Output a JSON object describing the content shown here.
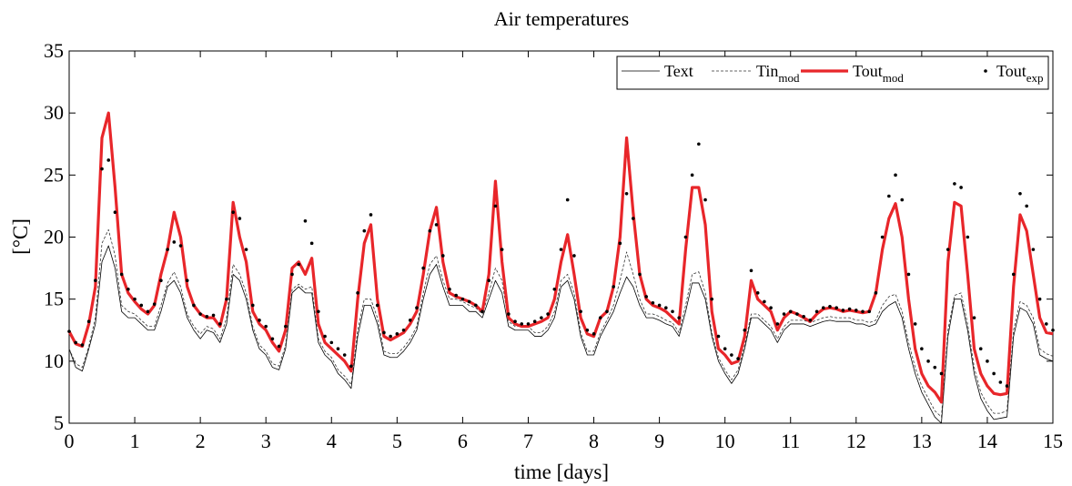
{
  "chart_data": {
    "type": "line",
    "title": "Air temperatures",
    "x_label": "time [days]",
    "y_label": "[°C]",
    "xlim": [
      0,
      15
    ],
    "xticks": [
      0,
      1,
      2,
      3,
      4,
      5,
      6,
      7,
      8,
      9,
      10,
      11,
      12,
      13,
      14,
      15
    ],
    "ylim": [
      5,
      35
    ],
    "yticks": [
      5,
      10,
      15,
      20,
      25,
      30,
      35
    ],
    "grid": false,
    "legend": "upper right",
    "x": [
      0,
      0.1,
      0.2,
      0.3,
      0.4,
      0.5,
      0.6,
      0.7,
      0.8,
      0.9,
      1,
      1.1,
      1.2,
      1.3,
      1.4,
      1.5,
      1.6,
      1.7,
      1.8,
      1.9,
      2,
      2.1,
      2.2,
      2.3,
      2.4,
      2.5,
      2.6,
      2.7,
      2.8,
      2.9,
      3,
      3.1,
      3.2,
      3.3,
      3.4,
      3.5,
      3.6,
      3.7,
      3.8,
      3.9,
      4,
      4.1,
      4.2,
      4.3,
      4.4,
      4.5,
      4.6,
      4.7,
      4.8,
      4.9,
      5,
      5.1,
      5.2,
      5.3,
      5.4,
      5.5,
      5.6,
      5.7,
      5.8,
      5.9,
      6,
      6.1,
      6.2,
      6.3,
      6.4,
      6.5,
      6.6,
      6.7,
      6.8,
      6.9,
      7,
      7.1,
      7.2,
      7.3,
      7.4,
      7.5,
      7.6,
      7.7,
      7.8,
      7.9,
      8,
      8.1,
      8.2,
      8.3,
      8.4,
      8.5,
      8.6,
      8.7,
      8.8,
      8.9,
      9,
      9.1,
      9.2,
      9.3,
      9.4,
      9.5,
      9.6,
      9.7,
      9.8,
      9.9,
      10,
      10.1,
      10.2,
      10.3,
      10.4,
      10.5,
      10.6,
      10.7,
      10.8,
      10.9,
      11,
      11.1,
      11.2,
      11.3,
      11.4,
      11.5,
      11.6,
      11.7,
      11.8,
      11.9,
      12,
      12.1,
      12.2,
      12.3,
      12.4,
      12.5,
      12.6,
      12.7,
      12.8,
      12.9,
      13,
      13.1,
      13.2,
      13.3,
      13.4,
      13.5,
      13.6,
      13.7,
      13.8,
      13.9,
      14,
      14.1,
      14.2,
      14.3,
      14.4,
      14.5,
      14.6,
      14.7,
      14.8,
      14.9,
      15
    ],
    "series": [
      {
        "name": "Text",
        "color": "#000000",
        "style": "solid",
        "width": 0.8,
        "values": [
          11,
          9.5,
          9.2,
          11,
          13,
          18,
          19.3,
          17.5,
          14,
          13.5,
          13.5,
          13,
          12.5,
          12.5,
          14,
          16,
          16.5,
          15.5,
          13.5,
          12.5,
          11.8,
          12.5,
          12.3,
          11.5,
          13,
          17,
          16.5,
          15,
          12.5,
          11,
          10.5,
          9.5,
          9.3,
          11,
          15.5,
          16,
          15.5,
          15.5,
          11.5,
          10.5,
          10,
          9,
          8.5,
          7.8,
          12,
          14.5,
          14.5,
          13,
          10.5,
          10.3,
          10.3,
          10.8,
          11.5,
          12.5,
          15,
          17,
          17.8,
          16,
          14.5,
          14.5,
          14.5,
          14,
          14,
          13.5,
          15,
          16.5,
          15.5,
          12.8,
          12.5,
          12.5,
          12.5,
          12,
          12,
          12.5,
          13.5,
          16,
          16.5,
          15,
          12,
          10.5,
          10.5,
          12,
          13,
          14,
          15.5,
          16.8,
          16,
          14.5,
          13.5,
          13.5,
          13.3,
          13,
          12.8,
          12,
          14,
          16.3,
          16.3,
          15,
          12,
          10,
          9,
          8.2,
          9,
          11,
          13.5,
          13.5,
          13,
          12.5,
          11.5,
          12.5,
          13,
          13,
          13,
          12.8,
          13,
          13.2,
          13.3,
          13.2,
          13.2,
          13.2,
          13,
          13,
          12.8,
          13,
          14,
          14.5,
          14.8,
          13.5,
          11,
          9,
          7.5,
          6.5,
          5.5,
          5,
          12,
          15,
          15,
          12.5,
          9,
          7,
          6,
          5.3,
          5.4,
          5.5,
          12,
          14.3,
          14,
          13,
          10.5,
          10.2,
          10
        ]
      },
      {
        "name": "Tin",
        "subscript": "mod",
        "color": "#333333",
        "style": "dashed",
        "width": 0.8,
        "values": [
          11,
          9.8,
          9.5,
          11.2,
          13.5,
          19.5,
          20.6,
          18.5,
          14.5,
          14,
          13.8,
          13.3,
          12.8,
          12.8,
          14.5,
          16.3,
          17.2,
          16,
          13.8,
          12.8,
          12.2,
          12.8,
          12.6,
          11.8,
          13.5,
          17.8,
          17,
          15.5,
          12.8,
          11.3,
          10.8,
          9.8,
          9.6,
          11.3,
          15.8,
          16.2,
          15.8,
          16,
          11.8,
          10.8,
          10.3,
          9.3,
          8.8,
          8.1,
          12.5,
          15,
          15,
          13.5,
          10.8,
          10.6,
          10.6,
          11.1,
          11.8,
          12.8,
          15.5,
          17.8,
          18.5,
          16.5,
          15,
          15,
          14.8,
          14.5,
          14.3,
          13.8,
          15.5,
          17.5,
          16.5,
          13.2,
          12.8,
          12.8,
          12.8,
          12.3,
          12.3,
          12.8,
          14,
          16.5,
          17,
          15.5,
          12.3,
          10.8,
          10.8,
          12.3,
          13.3,
          14.5,
          16.5,
          18.8,
          17,
          15,
          13.8,
          13.8,
          13.6,
          13.3,
          13.1,
          12.3,
          14.5,
          17,
          17.2,
          15.5,
          12.3,
          10.3,
          9.3,
          8.5,
          9.3,
          11.3,
          13.8,
          13.8,
          13.3,
          12.8,
          11.8,
          12.8,
          13.3,
          13.3,
          13.3,
          13.1,
          13.3,
          13.5,
          13.6,
          13.5,
          13.5,
          13.5,
          13.3,
          13.3,
          13.1,
          13.3,
          14.5,
          15.2,
          15.4,
          14,
          11.5,
          9.5,
          8,
          7,
          6,
          5.5,
          12.5,
          15.3,
          15.5,
          13,
          9.5,
          7.5,
          6.5,
          5.8,
          5.8,
          6,
          12.5,
          14.8,
          14.5,
          13.5,
          11,
          10.6,
          10.4
        ]
      },
      {
        "name": "Tout",
        "subscript": "mod",
        "color": "#e8262a",
        "style": "solid",
        "width": 3.2,
        "values": [
          12.4,
          11.4,
          11.2,
          13,
          16,
          28,
          30,
          24,
          17,
          15.5,
          14.8,
          14.2,
          13.8,
          14.5,
          17,
          19,
          22,
          20,
          16,
          14.5,
          13.8,
          13.5,
          13.5,
          12.8,
          15,
          22.8,
          20,
          18,
          14,
          13,
          12.5,
          11.5,
          10.8,
          12.5,
          17.5,
          18,
          17,
          18.3,
          13,
          11.5,
          11,
          10.5,
          10,
          9.2,
          15,
          19.5,
          21,
          15,
          12,
          11.7,
          12,
          12.3,
          13,
          14,
          17,
          20.5,
          22.4,
          18,
          15.5,
          15.2,
          15,
          14.8,
          14.5,
          14,
          17,
          24.5,
          18,
          13.5,
          13,
          12.8,
          12.8,
          13,
          13.2,
          13.5,
          15,
          18,
          20.2,
          17,
          13.5,
          12.2,
          12,
          13.5,
          14,
          16,
          20,
          28,
          22,
          17,
          15,
          14.5,
          14.3,
          14,
          13.5,
          13,
          19,
          24,
          24,
          21,
          14,
          11,
          10.5,
          9.8,
          10,
          12,
          16.5,
          15,
          14.5,
          14,
          12.5,
          13.5,
          14,
          13.8,
          13.5,
          13.2,
          13.8,
          14.2,
          14.3,
          14.2,
          14,
          14.1,
          14,
          13.9,
          14,
          15.5,
          19,
          21.5,
          22.7,
          20,
          15,
          11,
          9,
          8,
          7.5,
          6.7,
          18,
          22.8,
          22.5,
          17,
          11,
          9,
          8,
          7.4,
          7.3,
          7.4,
          16,
          21.8,
          20.5,
          17,
          13.5,
          12.3,
          12.2
        ]
      },
      {
        "name": "Tout",
        "subscript": "exp",
        "color": "#000000",
        "style": "dots",
        "width": 1.8,
        "values": [
          12.4,
          11.5,
          11.3,
          13.2,
          16.5,
          25.5,
          26.2,
          22,
          17,
          15.8,
          15,
          14.5,
          14,
          14.6,
          16.5,
          19,
          19.6,
          19.3,
          16.5,
          14.5,
          13.8,
          13.6,
          13.7,
          13,
          15,
          22,
          21.5,
          19,
          14.5,
          13.3,
          12.8,
          11.8,
          11.2,
          12.8,
          17,
          17.8,
          21.3,
          19.5,
          14,
          12,
          11.5,
          11,
          10.5,
          9.6,
          15.5,
          20.5,
          21.8,
          14.5,
          12.3,
          12,
          12.2,
          12.5,
          13.3,
          14.3,
          17.5,
          20.5,
          21,
          18.5,
          15.8,
          15.3,
          15,
          14.8,
          14.5,
          14,
          16.5,
          22.5,
          19,
          13.8,
          13.2,
          13,
          13,
          13.2,
          13.5,
          13.8,
          15.8,
          19,
          23,
          18.5,
          14,
          12.5,
          12.2,
          13.5,
          14,
          16,
          19.5,
          23.5,
          21.5,
          17,
          15.2,
          14.7,
          14.5,
          14.3,
          14,
          13.5,
          20,
          25,
          27.5,
          23,
          15,
          12,
          11,
          10.5,
          10.2,
          12.5,
          17.3,
          15.5,
          14.8,
          14.3,
          13,
          13.8,
          14,
          13.8,
          13.6,
          13.3,
          14,
          14.3,
          14.4,
          14.3,
          14.1,
          14.2,
          14.1,
          14,
          14,
          15.5,
          20,
          23.3,
          25,
          23,
          17,
          13,
          11,
          10,
          9.5,
          9,
          19,
          24.3,
          24,
          20,
          13.5,
          11,
          10,
          9,
          8.3,
          8,
          17,
          23.5,
          22.5,
          19,
          15,
          13,
          12.5
        ]
      }
    ]
  }
}
